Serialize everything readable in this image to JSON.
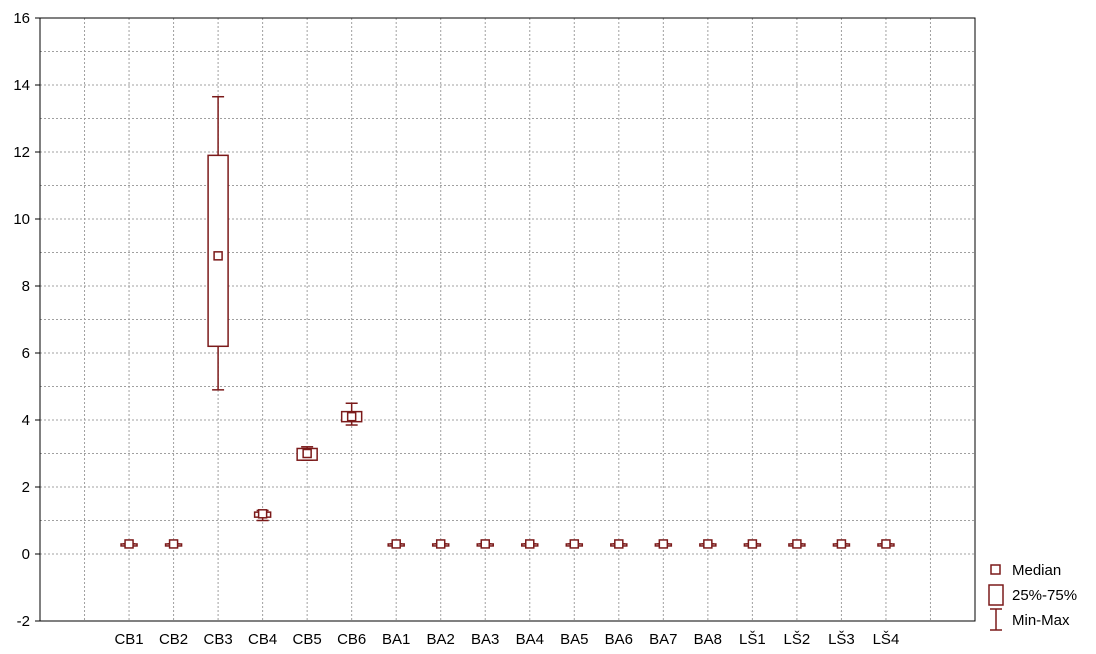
{
  "chart_data": {
    "type": "box",
    "categories": [
      "CB1",
      "CB2",
      "CB3",
      "CB4",
      "CB5",
      "CB6",
      "BA1",
      "BA2",
      "BA3",
      "BA4",
      "BA5",
      "BA6",
      "BA7",
      "BA8",
      "LŠ1",
      "LŠ2",
      "LŠ3",
      "LŠ4"
    ],
    "series": [
      {
        "median": [
          0.3,
          0.3,
          8.9,
          1.2,
          3.0,
          4.1,
          0.3,
          0.3,
          0.3,
          0.3,
          0.3,
          0.3,
          0.3,
          0.3,
          0.3,
          0.3,
          0.3,
          0.3
        ],
        "q1": [
          0.3,
          0.3,
          6.2,
          1.1,
          2.8,
          3.95,
          0.3,
          0.3,
          0.3,
          0.3,
          0.3,
          0.3,
          0.3,
          0.3,
          0.3,
          0.3,
          0.3,
          0.3
        ],
        "q3": [
          0.3,
          0.3,
          11.9,
          1.25,
          3.15,
          4.25,
          0.3,
          0.3,
          0.3,
          0.3,
          0.3,
          0.3,
          0.3,
          0.3,
          0.3,
          0.3,
          0.3,
          0.3
        ],
        "min": [
          0.3,
          0.3,
          4.9,
          1.0,
          2.8,
          3.85,
          0.3,
          0.3,
          0.3,
          0.3,
          0.3,
          0.3,
          0.3,
          0.3,
          0.3,
          0.3,
          0.3,
          0.3
        ],
        "max": [
          0.3,
          0.3,
          13.65,
          1.3,
          3.2,
          4.5,
          0.3,
          0.3,
          0.3,
          0.3,
          0.3,
          0.3,
          0.3,
          0.3,
          0.3,
          0.3,
          0.3,
          0.3
        ]
      }
    ],
    "y_ticks": [
      -2,
      0,
      2,
      4,
      6,
      8,
      10,
      12,
      14,
      16
    ],
    "ylim": [
      -2,
      16
    ],
    "grid": true,
    "legend_position": "bottom-right",
    "legend": {
      "median": "Median",
      "box": "25%-75%",
      "whisker": "Min-Max"
    },
    "colors": {
      "series": "#7b1a1a",
      "grid": "#a0a0a0",
      "axis": "#000000"
    }
  }
}
